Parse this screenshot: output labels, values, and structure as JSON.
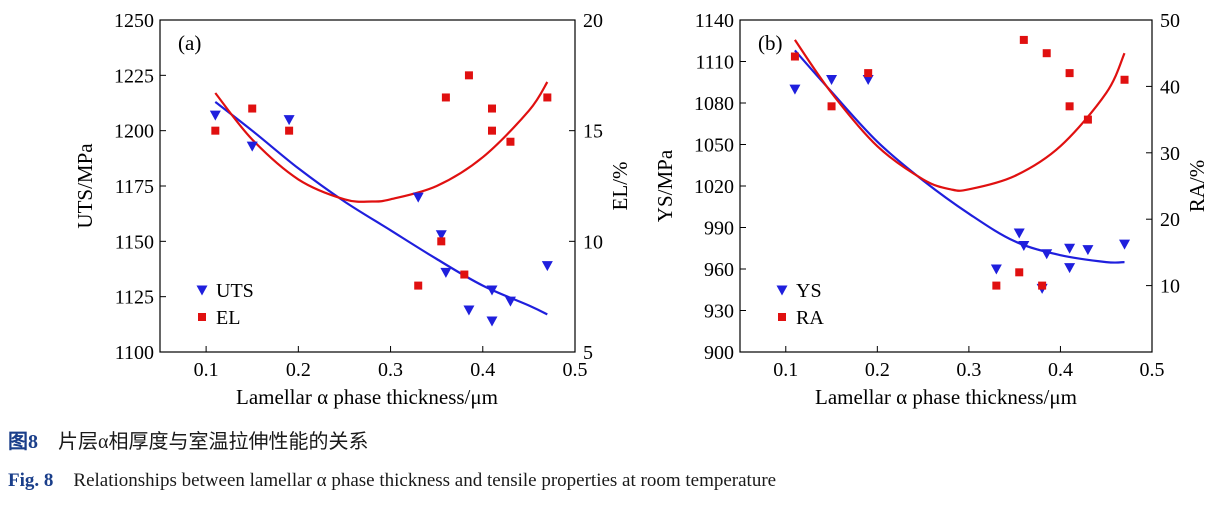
{
  "chart_data": [
    {
      "type": "scatter",
      "panel_label": "(a)",
      "xlabel": "Lamellar α phase thickness/μm",
      "ylabel_left": "UTS/MPa",
      "ylabel_right": "EL/%",
      "xlim": [
        0.05,
        0.5
      ],
      "xticks": [
        0.1,
        0.2,
        0.3,
        0.4,
        0.5
      ],
      "ylim_left": [
        1100,
        1250
      ],
      "yticks_left": [
        1100,
        1125,
        1150,
        1175,
        1200,
        1225,
        1250
      ],
      "ylim_right": [
        5,
        20
      ],
      "yticks_right": [
        5,
        10,
        15,
        20
      ],
      "legend_position": "bottom-left",
      "series": [
        {
          "name": "UTS",
          "axis": "left",
          "color": "#1f1fdd",
          "marker": "triangle-down",
          "x": [
            0.11,
            0.15,
            0.19,
            0.33,
            0.355,
            0.36,
            0.385,
            0.41,
            0.41,
            0.43,
            0.47
          ],
          "y": [
            1207,
            1193,
            1205,
            1170,
            1153,
            1136,
            1119,
            1128,
            1114,
            1123,
            1139
          ]
        },
        {
          "name": "EL",
          "axis": "right",
          "color": "#e01010",
          "marker": "square",
          "x": [
            0.11,
            0.15,
            0.19,
            0.33,
            0.355,
            0.36,
            0.38,
            0.385,
            0.41,
            0.41,
            0.43,
            0.47
          ],
          "y": [
            15,
            16,
            15,
            8,
            10,
            16.5,
            8.5,
            17.5,
            16,
            15,
            14.5,
            16.5
          ]
        }
      ],
      "fits": [
        {
          "name": "UTS fit",
          "axis": "left",
          "color": "#1f1fdd",
          "x": [
            0.11,
            0.15,
            0.2,
            0.25,
            0.3,
            0.35,
            0.4,
            0.45,
            0.47
          ],
          "y": [
            1213,
            1200,
            1183,
            1168,
            1155,
            1142,
            1130,
            1121,
            1117
          ]
        },
        {
          "name": "EL fit",
          "axis": "right",
          "color": "#e01010",
          "x": [
            0.11,
            0.15,
            0.2,
            0.25,
            0.28,
            0.3,
            0.35,
            0.4,
            0.45,
            0.47
          ],
          "y": [
            16.7,
            14.6,
            12.8,
            11.9,
            11.8,
            11.9,
            12.5,
            13.8,
            15.9,
            17.2
          ]
        }
      ]
    },
    {
      "type": "scatter",
      "panel_label": "(b)",
      "xlabel": "Lamellar α phase thickness/μm",
      "ylabel_left": "YS/MPa",
      "ylabel_right": "RA/%",
      "xlim": [
        0.05,
        0.5
      ],
      "xticks": [
        0.1,
        0.2,
        0.3,
        0.4,
        0.5
      ],
      "ylim_left": [
        900,
        1140
      ],
      "yticks_left": [
        900,
        930,
        960,
        990,
        1020,
        1050,
        1080,
        1110,
        1140
      ],
      "ylim_right": [
        0,
        50
      ],
      "yticks_right": [
        10,
        20,
        30,
        40,
        50
      ],
      "legend_position": "bottom-left",
      "series": [
        {
          "name": "YS",
          "axis": "left",
          "color": "#1f1fdd",
          "marker": "triangle-down",
          "x": [
            0.11,
            0.15,
            0.19,
            0.33,
            0.355,
            0.36,
            0.38,
            0.385,
            0.41,
            0.41,
            0.43,
            0.47
          ],
          "y": [
            1090,
            1097,
            1097,
            960,
            986,
            977,
            946,
            971,
            975,
            961,
            974,
            978
          ]
        },
        {
          "name": "RA",
          "axis": "right",
          "color": "#e01010",
          "marker": "square",
          "x": [
            0.11,
            0.15,
            0.19,
            0.33,
            0.355,
            0.36,
            0.38,
            0.385,
            0.41,
            0.41,
            0.43,
            0.47
          ],
          "y": [
            44.5,
            37,
            42,
            10,
            12,
            47,
            10,
            45,
            42,
            37,
            35,
            41
          ]
        }
      ],
      "fits": [
        {
          "name": "YS fit",
          "axis": "left",
          "color": "#1f1fdd",
          "x": [
            0.11,
            0.15,
            0.2,
            0.25,
            0.3,
            0.35,
            0.4,
            0.45,
            0.47
          ],
          "y": [
            1118,
            1088,
            1052,
            1024,
            1000,
            980,
            970,
            965,
            965
          ]
        },
        {
          "name": "RA fit",
          "axis": "right",
          "color": "#e01010",
          "x": [
            0.11,
            0.15,
            0.2,
            0.25,
            0.28,
            0.3,
            0.35,
            0.4,
            0.45,
            0.47
          ],
          "y": [
            47,
            39,
            31,
            26,
            24.5,
            24.5,
            26.5,
            31,
            39,
            45
          ]
        }
      ]
    }
  ],
  "caption": {
    "cn_label": "图8",
    "cn_text": "片层α相厚度与室温拉伸性能的关系",
    "en_label": "Fig. 8",
    "en_text": "Relationships between lamellar α phase thickness and tensile properties at room temperature"
  }
}
